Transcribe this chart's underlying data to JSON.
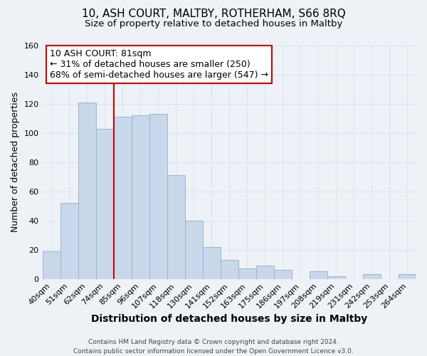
{
  "title": "10, ASH COURT, MALTBY, ROTHERHAM, S66 8RQ",
  "subtitle": "Size of property relative to detached houses in Maltby",
  "xlabel": "Distribution of detached houses by size in Maltby",
  "ylabel": "Number of detached properties",
  "footer_line1": "Contains HM Land Registry data © Crown copyright and database right 2024.",
  "footer_line2": "Contains public sector information licensed under the Open Government Licence v3.0.",
  "categories": [
    "40sqm",
    "51sqm",
    "62sqm",
    "74sqm",
    "85sqm",
    "96sqm",
    "107sqm",
    "118sqm",
    "130sqm",
    "141sqm",
    "152sqm",
    "163sqm",
    "175sqm",
    "186sqm",
    "197sqm",
    "208sqm",
    "219sqm",
    "231sqm",
    "242sqm",
    "253sqm",
    "264sqm"
  ],
  "values": [
    19,
    52,
    121,
    103,
    111,
    112,
    113,
    71,
    40,
    22,
    13,
    7,
    9,
    6,
    0,
    5,
    2,
    0,
    3,
    0,
    3
  ],
  "bar_color": "#c8d8ea",
  "bar_edge_color": "#9ab5cc",
  "highlight_index": 4,
  "highlight_line_color": "#cc0000",
  "annotation_text": "10 ASH COURT: 81sqm\n← 31% of detached houses are smaller (250)\n68% of semi-detached houses are larger (547) →",
  "annotation_box_color": "#ffffff",
  "annotation_box_edge_color": "#cc0000",
  "ylim": [
    0,
    160
  ],
  "yticks": [
    0,
    20,
    40,
    60,
    80,
    100,
    120,
    140,
    160
  ],
  "background_color": "#eef2f7",
  "grid_color": "#d8e4f0",
  "title_fontsize": 11,
  "subtitle_fontsize": 9.5,
  "xlabel_fontsize": 10,
  "ylabel_fontsize": 9,
  "tick_fontsize": 8,
  "annotation_fontsize": 9,
  "footer_fontsize": 6.5
}
